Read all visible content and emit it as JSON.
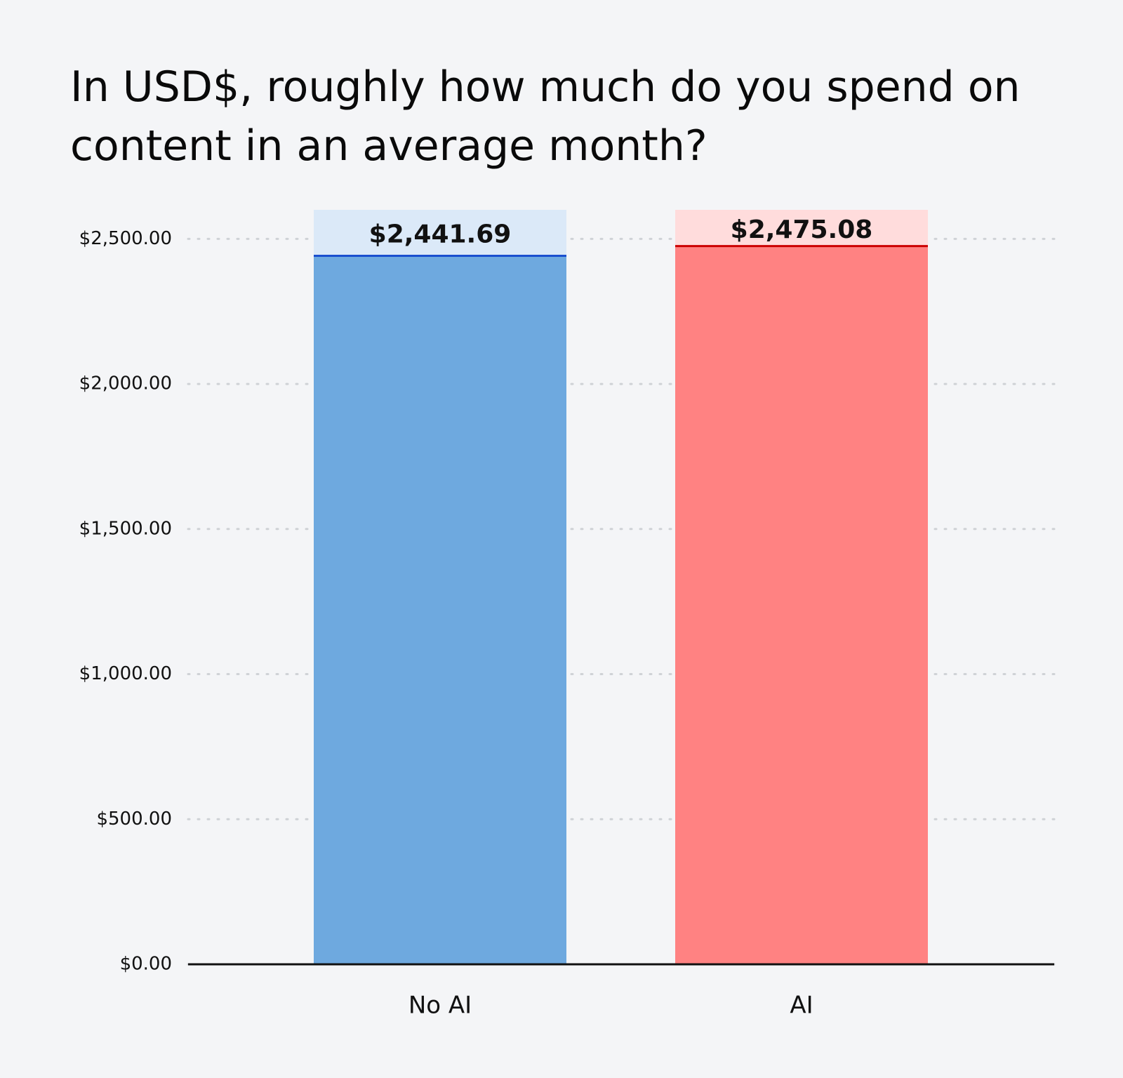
{
  "chart_data": {
    "type": "bar",
    "title": "In USD$, roughly how much do you spend on content in an average month?",
    "categories": [
      "No AI",
      "AI"
    ],
    "values": [
      2441.69,
      2475.08
    ],
    "value_labels": [
      "$2,441.69",
      "$2,475.08"
    ],
    "colors": [
      "#6ea9df",
      "#ff8282"
    ],
    "ylim": [
      0,
      2600
    ],
    "yticks": [
      {
        "value": 0,
        "label": "$0.00"
      },
      {
        "value": 500,
        "label": "$500.00"
      },
      {
        "value": 1000,
        "label": "$1,000.00"
      },
      {
        "value": 1500,
        "label": "$1,500.00"
      },
      {
        "value": 2000,
        "label": "$2,000.00"
      },
      {
        "value": 2500,
        "label": "$2,500.00"
      }
    ],
    "grid": true
  }
}
